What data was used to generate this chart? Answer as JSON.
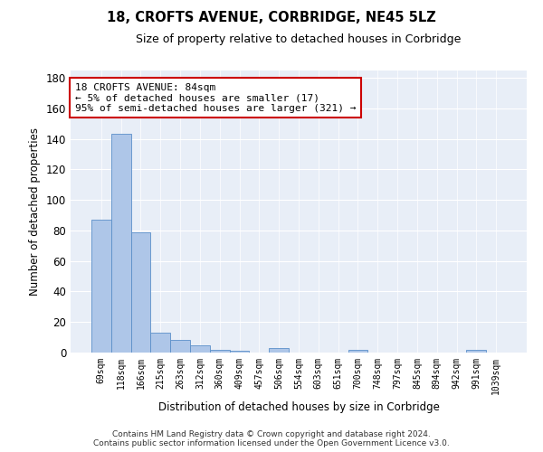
{
  "title": "18, CROFTS AVENUE, CORBRIDGE, NE45 5LZ",
  "subtitle": "Size of property relative to detached houses in Corbridge",
  "xlabel": "Distribution of detached houses by size in Corbridge",
  "ylabel": "Number of detached properties",
  "bar_labels": [
    "69sqm",
    "118sqm",
    "166sqm",
    "215sqm",
    "263sqm",
    "312sqm",
    "360sqm",
    "409sqm",
    "457sqm",
    "506sqm",
    "554sqm",
    "603sqm",
    "651sqm",
    "700sqm",
    "748sqm",
    "797sqm",
    "845sqm",
    "894sqm",
    "942sqm",
    "991sqm",
    "1039sqm"
  ],
  "bar_values": [
    87,
    143,
    79,
    13,
    8,
    5,
    2,
    1,
    0,
    3,
    0,
    0,
    0,
    2,
    0,
    0,
    0,
    0,
    0,
    2,
    0
  ],
  "bar_color": "#aec6e8",
  "bar_edge_color": "#5b8fc9",
  "ylim": [
    0,
    185
  ],
  "yticks": [
    0,
    20,
    40,
    60,
    80,
    100,
    120,
    140,
    160,
    180
  ],
  "annotation_text": "18 CROFTS AVENUE: 84sqm\n← 5% of detached houses are smaller (17)\n95% of semi-detached houses are larger (321) →",
  "bg_color": "#e8eef7",
  "footer_line1": "Contains HM Land Registry data © Crown copyright and database right 2024.",
  "footer_line2": "Contains public sector information licensed under the Open Government Licence v3.0."
}
